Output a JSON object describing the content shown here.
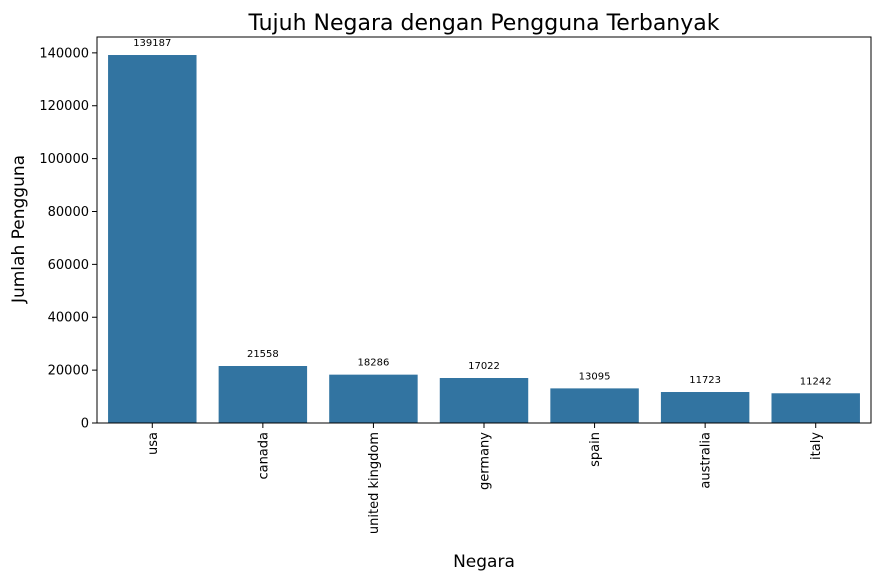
{
  "chart_data": {
    "type": "bar",
    "title": "Tujuh Negara dengan Pengguna Terbanyak",
    "xlabel": "Negara",
    "ylabel": "Jumlah Pengguna",
    "categories": [
      "usa",
      "canada",
      "united kingdom",
      "germany",
      "spain",
      "australia",
      "italy"
    ],
    "values": [
      139187,
      21558,
      18286,
      17022,
      13095,
      11723,
      11242
    ],
    "data_labels": [
      "139187",
      "21558",
      "18286",
      "17022",
      "13095",
      "11723",
      "11242"
    ],
    "ylim": [
      0,
      146000
    ],
    "yticks": [
      0,
      20000,
      40000,
      60000,
      80000,
      100000,
      120000,
      140000
    ],
    "ytick_labels": [
      "0",
      "20000",
      "40000",
      "60000",
      "80000",
      "100000",
      "120000",
      "140000"
    ],
    "grid": false,
    "legend": "none",
    "bar_color": "#3274a1"
  }
}
